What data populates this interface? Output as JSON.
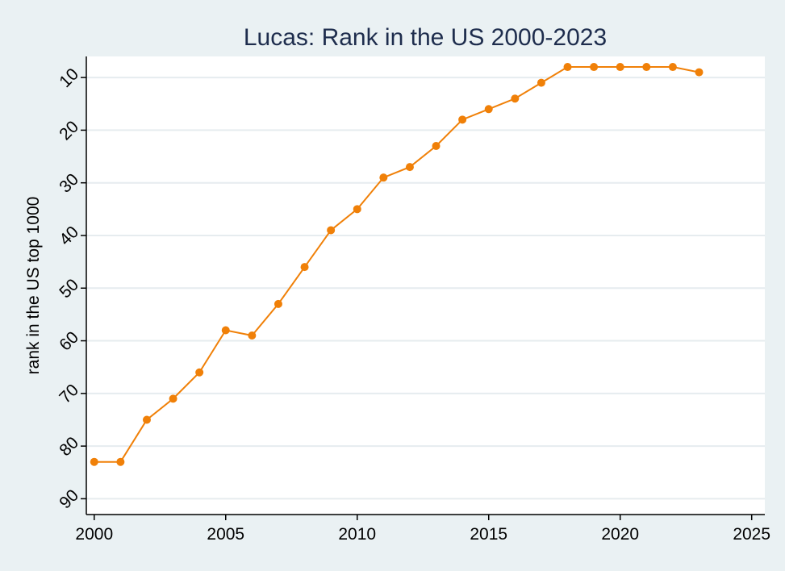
{
  "chart_data": {
    "type": "line",
    "title": "Lucas: Rank in the US 2000-2023",
    "xlabel": "",
    "ylabel": "rank in the US top 1000",
    "y_reversed": true,
    "xlim": [
      1999.7,
      2025.5
    ],
    "ylim": [
      6,
      93
    ],
    "x_ticks": [
      2000,
      2005,
      2010,
      2015,
      2020,
      2025
    ],
    "y_ticks": [
      10,
      20,
      30,
      40,
      50,
      60,
      70,
      80,
      90
    ],
    "grid": true,
    "colors": {
      "line": "#f08008",
      "plot_bg": "#ffffff",
      "outer_bg": "#eaf1f3",
      "title": "#1e2d4d",
      "grid": "#e6ecef"
    },
    "series": [
      {
        "x": [
          2000,
          2001,
          2002,
          2003,
          2004,
          2005,
          2006,
          2007,
          2008,
          2009,
          2010,
          2011,
          2012,
          2013,
          2014,
          2015,
          2016,
          2017,
          2018,
          2019,
          2020,
          2021,
          2022,
          2023
        ],
        "values": [
          83,
          83,
          75,
          71,
          66,
          58,
          59,
          53,
          46,
          39,
          35,
          29,
          27,
          23,
          18,
          16,
          14,
          11,
          8,
          8,
          8,
          8,
          8,
          9
        ]
      }
    ]
  }
}
